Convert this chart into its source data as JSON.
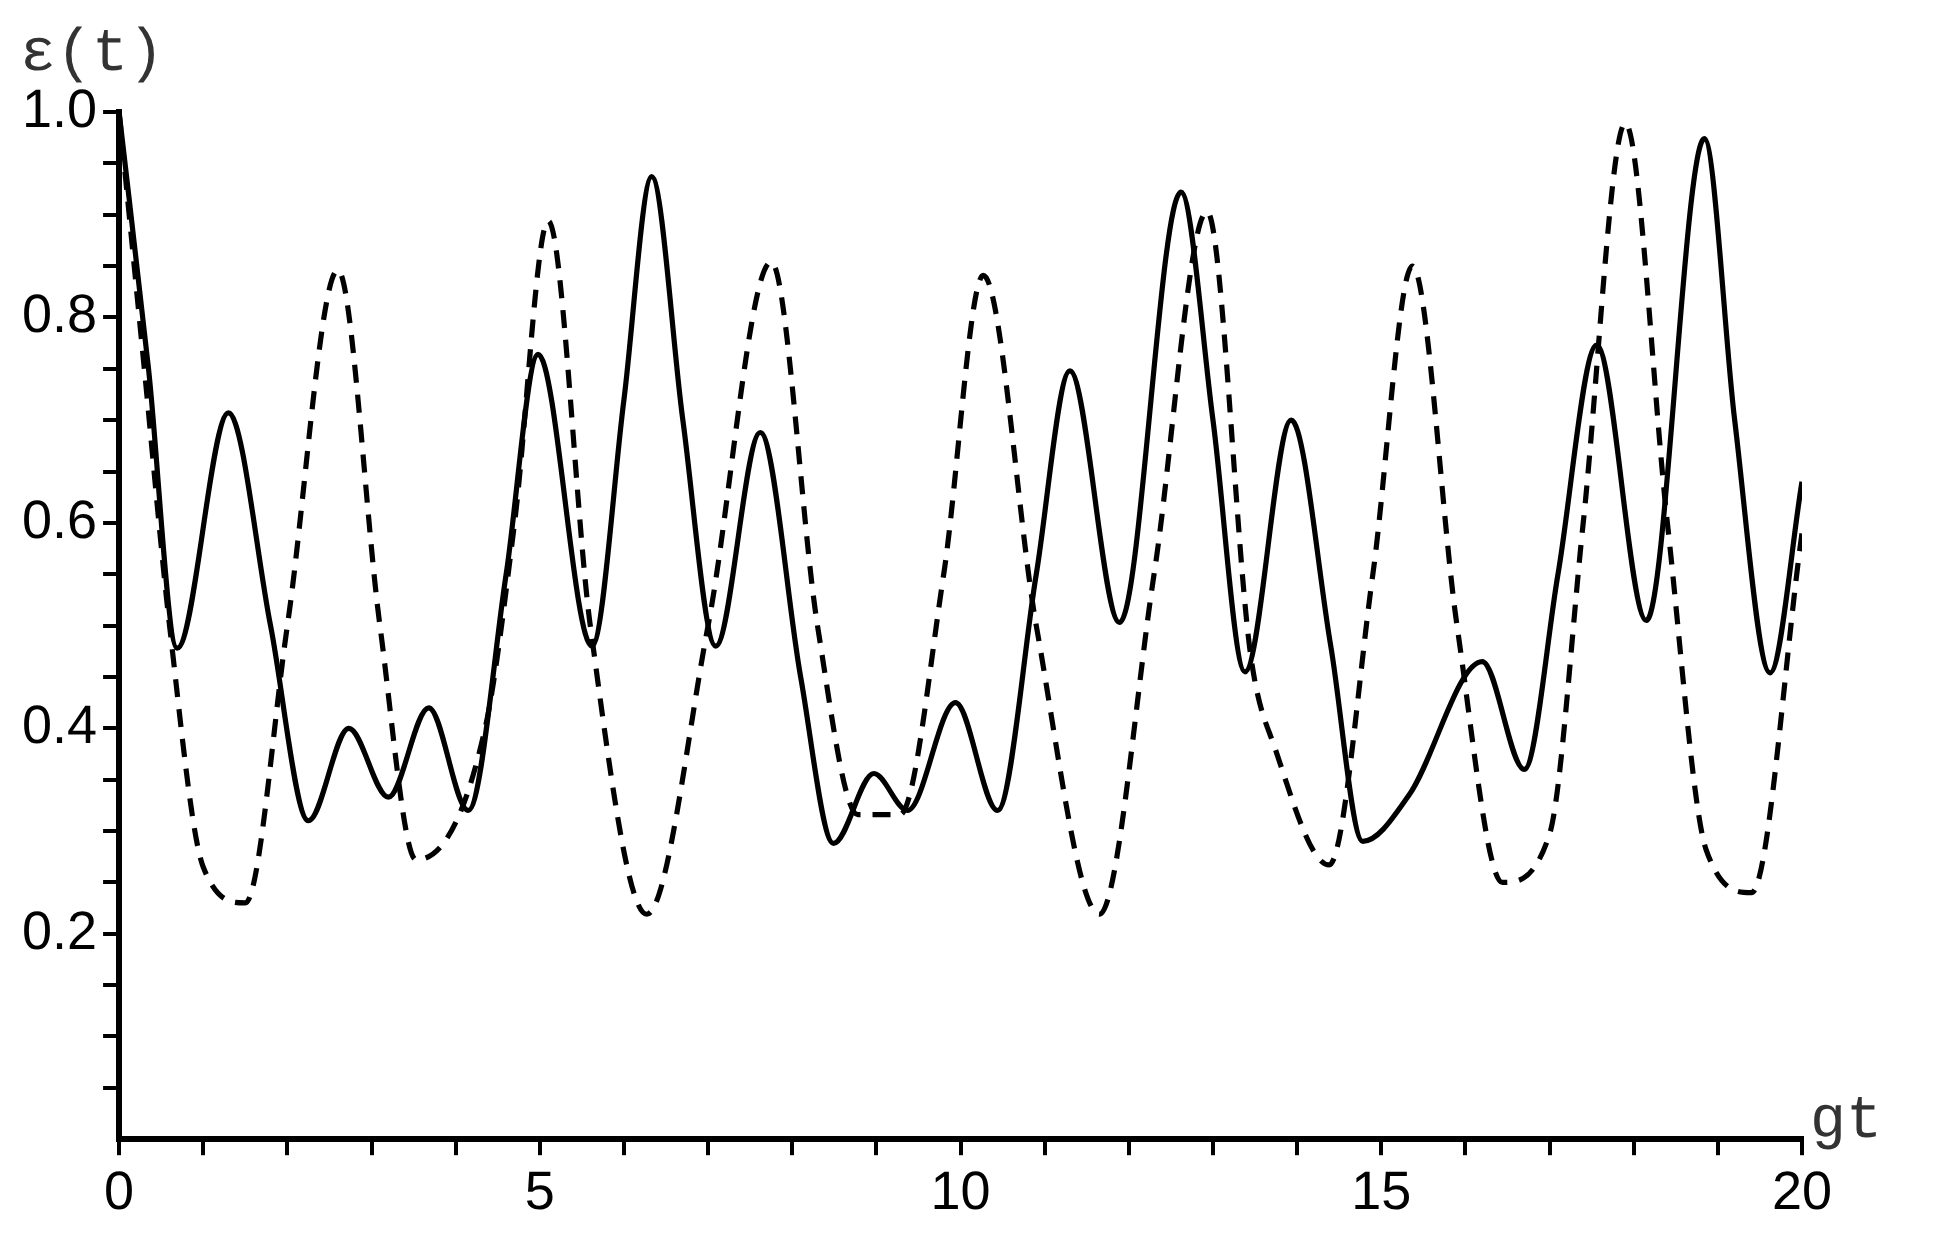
{
  "chart_data": {
    "type": "line",
    "xlabel": "gt",
    "ylabel": "ε(t)",
    "xlim": [
      0,
      20
    ],
    "ylim": [
      0,
      1
    ],
    "xticks": [
      0,
      {
        "value": 1,
        "label": null
      },
      {
        "value": 2,
        "label": null
      },
      {
        "value": 3,
        "label": null
      },
      {
        "value": 4,
        "label": null
      },
      5,
      {
        "value": 6,
        "label": null
      },
      {
        "value": 7,
        "label": null
      },
      {
        "value": 8,
        "label": null
      },
      {
        "value": 9,
        "label": null
      },
      10,
      {
        "value": 11,
        "label": null
      },
      {
        "value": 12,
        "label": null
      },
      {
        "value": 13,
        "label": null
      },
      {
        "value": 14,
        "label": null
      },
      15,
      {
        "value": 16,
        "label": null
      },
      {
        "value": 17,
        "label": null
      },
      {
        "value": 18,
        "label": null
      },
      {
        "value": 19,
        "label": null
      },
      20
    ],
    "yticks": [
      {
        "value": 0.05,
        "label": null
      },
      {
        "value": 0.1,
        "label": null
      },
      {
        "value": 0.15,
        "label": null
      },
      0.2,
      {
        "value": 0.25,
        "label": null
      },
      {
        "value": 0.3,
        "label": null
      },
      {
        "value": 0.35,
        "label": null
      },
      0.4,
      {
        "value": 0.45,
        "label": null
      },
      {
        "value": 0.5,
        "label": null
      },
      {
        "value": 0.55,
        "label": null
      },
      0.6,
      {
        "value": 0.65,
        "label": null
      },
      {
        "value": 0.7,
        "label": null
      },
      {
        "value": 0.75,
        "label": null
      },
      0.8,
      {
        "value": 0.85,
        "label": null
      },
      {
        "value": 0.9,
        "label": null
      },
      {
        "value": 0.95,
        "label": null
      },
      {
        "value": 1,
        "label": "1.0"
      }
    ],
    "grid": false,
    "legend": false,
    "marker": "none",
    "series": [
      {
        "color": "#000000",
        "line_style": "solid",
        "x": [
          0,
          0.35,
          0.69,
          1.3,
          1.8,
          2.25,
          2.73,
          3.2,
          3.68,
          4.15,
          4.6,
          4.98,
          5.62,
          6.0,
          6.33,
          6.7,
          7.09,
          7.62,
          8.1,
          8.49,
          8.97,
          9.37,
          9.94,
          10.44,
          10.9,
          11.3,
          11.89,
          12.62,
          13.0,
          13.38,
          13.93,
          14.4,
          14.78,
          15.33,
          16.2,
          16.7,
          17.1,
          17.56,
          18.15,
          18.84,
          19.2,
          19.62,
          20
        ],
        "values": [
          1.0,
          0.75,
          0.478,
          0.707,
          0.5,
          0.31,
          0.4,
          0.333,
          0.42,
          0.32,
          0.55,
          0.764,
          0.48,
          0.72,
          0.937,
          0.7,
          0.48,
          0.688,
          0.45,
          0.288,
          0.356,
          0.32,
          0.425,
          0.32,
          0.55,
          0.748,
          0.503,
          0.922,
          0.7,
          0.455,
          0.7,
          0.48,
          0.29,
          0.335,
          0.465,
          0.36,
          0.55,
          0.773,
          0.505,
          0.974,
          0.7,
          0.454,
          0.64
        ]
      },
      {
        "color": "#000000",
        "line_style": "dashed",
        "x": [
          0,
          0.3,
          0.6,
          1.0,
          1.5,
          2.0,
          2.6,
          3.1,
          3.53,
          4.35,
          4.7,
          5.1,
          5.6,
          6.27,
          7.0,
          7.75,
          8.3,
          8.78,
          9.28,
          9.8,
          10.27,
          10.9,
          11.65,
          12.3,
          12.93,
          13.45,
          13.74,
          14.38,
          14.9,
          15.37,
          15.9,
          16.44,
          17.0,
          17.4,
          17.9,
          18.4,
          18.86,
          19.4,
          20
        ],
        "values": [
          1.0,
          0.75,
          0.5,
          0.265,
          0.23,
          0.5,
          0.846,
          0.5,
          0.272,
          0.4,
          0.6,
          0.894,
          0.5,
          0.219,
          0.5,
          0.854,
          0.5,
          0.316,
          0.316,
          0.55,
          0.841,
          0.5,
          0.219,
          0.55,
          0.903,
          0.47,
          0.38,
          0.267,
          0.55,
          0.85,
          0.5,
          0.25,
          0.297,
          0.6,
          0.989,
          0.6,
          0.282,
          0.24,
          0.59
        ]
      }
    ]
  }
}
